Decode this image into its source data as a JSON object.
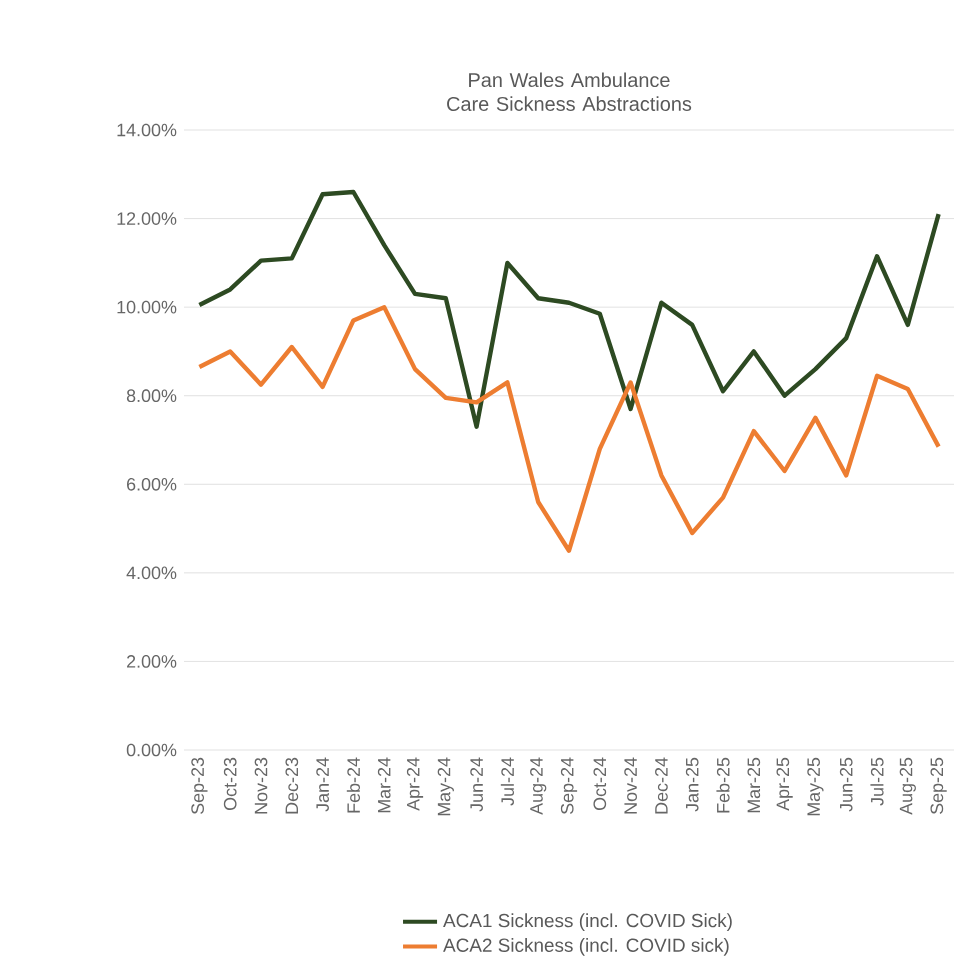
{
  "chart_data": {
    "type": "line",
    "title": "Pan Wales Ambulance Care Sickness Abstractions",
    "categories": [
      "Sep-23",
      "Oct-23",
      "Nov-23",
      "Dec-23",
      "Jan-24",
      "Feb-24",
      "Mar-24",
      "Apr-24",
      "May-24",
      "Jun-24",
      "Jul-24",
      "Aug-24",
      "Sep-24",
      "Oct-24",
      "Nov-24",
      "Dec-24",
      "Jan-25",
      "Feb-25",
      "Mar-25",
      "Apr-25",
      "May-25",
      "Jun-25",
      "Jul-25",
      "Aug-25",
      "Sep-25"
    ],
    "series": [
      {
        "name": "ACA1 Sickness (incl. COVID Sick)",
        "color": "#2d4a22",
        "values": [
          10.05,
          10.4,
          11.05,
          11.1,
          12.55,
          12.6,
          11.4,
          10.3,
          10.2,
          7.3,
          11.0,
          10.2,
          10.1,
          9.85,
          7.7,
          10.1,
          9.6,
          8.1,
          9.0,
          8.0,
          8.6,
          9.3,
          11.15,
          9.6,
          12.1
        ]
      },
      {
        "name": "ACA2 Sickness (incl. COVID sick)",
        "color": "#ed7d31",
        "values": [
          8.65,
          9.0,
          8.25,
          9.1,
          8.2,
          9.7,
          10.0,
          8.6,
          7.95,
          7.85,
          8.3,
          5.6,
          4.5,
          6.8,
          8.3,
          6.2,
          4.9,
          5.7,
          7.2,
          6.3,
          7.5,
          6.2,
          8.45,
          8.15,
          6.85
        ]
      }
    ],
    "ylim": [
      0,
      14
    ],
    "yticks": [
      {
        "value": 0,
        "label": "0.00%"
      },
      {
        "value": 2,
        "label": "2.00%"
      },
      {
        "value": 4,
        "label": "4.00%"
      },
      {
        "value": 6,
        "label": "6.00%"
      },
      {
        "value": 8,
        "label": "8.00%"
      },
      {
        "value": 10,
        "label": "10.00%"
      },
      {
        "value": 12,
        "label": "12.00%"
      },
      {
        "value": 14,
        "label": "14.00%"
      }
    ],
    "grid": "y",
    "legend": "bottom",
    "marker": "none",
    "line_style": "solid"
  }
}
